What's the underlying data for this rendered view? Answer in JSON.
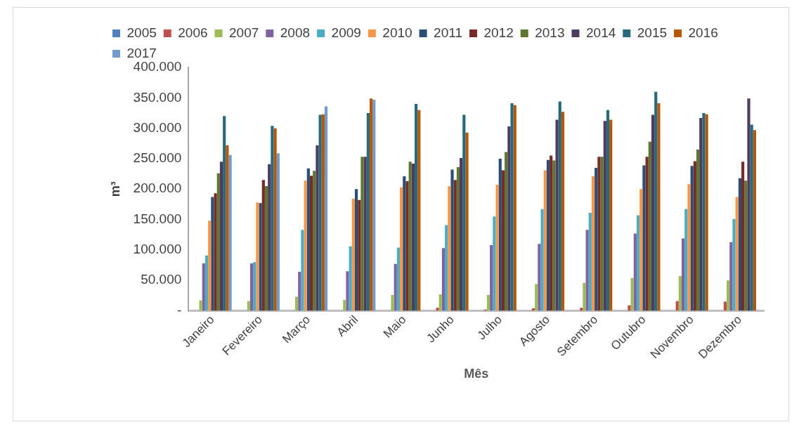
{
  "chart_data": {
    "type": "bar",
    "xlabel": "Mês",
    "ylabel": "m³",
    "categories": [
      "Janeiro",
      "Fevereiro",
      "Março",
      "Abril",
      "Maio",
      "Junho",
      "Julho",
      "Agosto",
      "Setembro",
      "Outubro",
      "Novembro",
      "Dezembro"
    ],
    "ylim": [
      0,
      400000
    ],
    "yticks": [
      {
        "value": 0,
        "label": "-"
      },
      {
        "value": 50000,
        "label": "50.000"
      },
      {
        "value": 100000,
        "label": "100.000"
      },
      {
        "value": 150000,
        "label": "150.000"
      },
      {
        "value": 200000,
        "label": "200.000"
      },
      {
        "value": 250000,
        "label": "250.000"
      },
      {
        "value": 300000,
        "label": "300.000"
      },
      {
        "value": 350000,
        "label": "350.000"
      },
      {
        "value": 400000,
        "label": "400.000"
      }
    ],
    "grid": false,
    "legend": "top",
    "series": [
      {
        "name": "2005",
        "color": "#4f81bd",
        "values": [
          null,
          null,
          null,
          null,
          null,
          null,
          null,
          null,
          null,
          null,
          null,
          null
        ]
      },
      {
        "name": "2006",
        "color": "#c0504d",
        "values": [
          null,
          null,
          null,
          null,
          null,
          5000,
          2000,
          4000,
          5000,
          9000,
          16000,
          15000
        ]
      },
      {
        "name": "2007",
        "color": "#9bbb59",
        "values": [
          17000,
          16000,
          23000,
          18000,
          26000,
          27000,
          26000,
          44000,
          46000,
          54000,
          57000,
          50000
        ]
      },
      {
        "name": "2008",
        "color": "#8064a2",
        "values": [
          78000,
          78000,
          64000,
          65000,
          77000,
          103000,
          108000,
          110000,
          133000,
          127000,
          119000,
          113000
        ]
      },
      {
        "name": "2009",
        "color": "#4bacc6",
        "values": [
          91000,
          80000,
          133000,
          106000,
          104000,
          141000,
          155000,
          167000,
          161000,
          157000,
          167000,
          151000
        ]
      },
      {
        "name": "2010",
        "color": "#f79646",
        "values": [
          148000,
          178000,
          214000,
          184000,
          203000,
          205000,
          207000,
          231000,
          221000,
          200000,
          208000,
          187000
        ]
      },
      {
        "name": "2011",
        "color": "#2c4d75",
        "values": [
          187000,
          177000,
          234000,
          200000,
          221000,
          232000,
          250000,
          248000,
          235000,
          239000,
          238000,
          218000
        ]
      },
      {
        "name": "2012",
        "color": "#772c2a",
        "values": [
          193000,
          215000,
          222000,
          182000,
          213000,
          215000,
          231000,
          255000,
          253000,
          253000,
          246000,
          245000
        ]
      },
      {
        "name": "2013",
        "color": "#5f7530",
        "values": [
          226000,
          205000,
          230000,
          253000,
          245000,
          236000,
          261000,
          247000,
          253000,
          278000,
          265000,
          214000
        ]
      },
      {
        "name": "2014",
        "color": "#4d3b62",
        "values": [
          245000,
          241000,
          272000,
          253000,
          242000,
          251000,
          303000,
          314000,
          312000,
          322000,
          317000,
          349000
        ]
      },
      {
        "name": "2015",
        "color": "#276a7c",
        "values": [
          320000,
          304000,
          322000,
          325000,
          340000,
          322000,
          341000,
          344000,
          330000,
          360000,
          325000,
          306000
        ]
      },
      {
        "name": "2016",
        "color": "#b65708",
        "values": [
          272000,
          300000,
          323000,
          349000,
          330000,
          293000,
          338000,
          327000,
          314000,
          341000,
          323000,
          297000
        ]
      },
      {
        "name": "2017",
        "color": "#729aca",
        "values": [
          256000,
          259000,
          336000,
          347000,
          null,
          null,
          null,
          null,
          null,
          null,
          null,
          null
        ]
      }
    ]
  }
}
